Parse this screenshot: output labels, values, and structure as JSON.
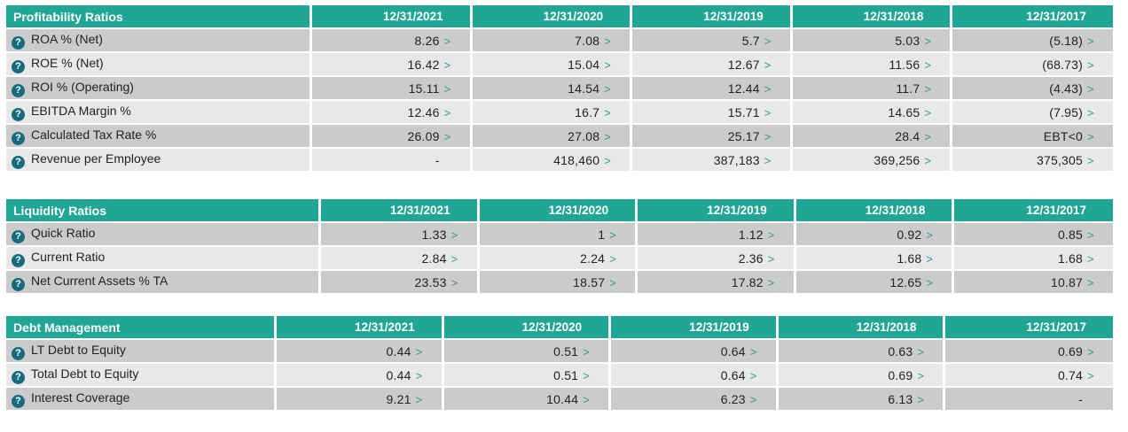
{
  "colors": {
    "header_teal": "#21a695",
    "help_icon_bg": "#176b7c",
    "row_dark": "#cbcbcb",
    "row_light": "#e8e8e8",
    "arrow_teal": "#2b9e94",
    "header_text": "#ffffff",
    "cell_text": "#222222"
  },
  "icons": {
    "help": "?",
    "arrow": ">"
  },
  "tables": [
    {
      "title": "Profitability Ratios",
      "columns": [
        "12/31/2021",
        "12/31/2020",
        "12/31/2019",
        "12/31/2018",
        "12/31/2017"
      ],
      "rows": [
        {
          "label": "ROA % (Net)",
          "values": [
            "8.26",
            "7.08",
            "5.7",
            "5.03",
            "(5.18)"
          ],
          "links": [
            true,
            true,
            true,
            true,
            true
          ]
        },
        {
          "label": "ROE % (Net)",
          "values": [
            "16.42",
            "15.04",
            "12.67",
            "11.56",
            "(68.73)"
          ],
          "links": [
            true,
            true,
            true,
            true,
            true
          ]
        },
        {
          "label": "ROI % (Operating)",
          "values": [
            "15.11",
            "14.54",
            "12.44",
            "11.7",
            "(4.43)"
          ],
          "links": [
            true,
            true,
            true,
            true,
            true
          ]
        },
        {
          "label": "EBITDA Margin %",
          "values": [
            "12.46",
            "16.7",
            "15.71",
            "14.65",
            "(7.95)"
          ],
          "links": [
            true,
            true,
            true,
            true,
            true
          ]
        },
        {
          "label": "Calculated Tax Rate %",
          "values": [
            "26.09",
            "27.08",
            "25.17",
            "28.4",
            "EBT<0"
          ],
          "links": [
            true,
            true,
            true,
            true,
            true
          ]
        },
        {
          "label": "Revenue per Employee",
          "values": [
            "-",
            "418,460",
            "387,183",
            "369,256",
            "375,305"
          ],
          "links": [
            false,
            true,
            true,
            true,
            true
          ]
        }
      ]
    },
    {
      "title": "Liquidity Ratios",
      "columns": [
        "12/31/2021",
        "12/31/2020",
        "12/31/2019",
        "12/31/2018",
        "12/31/2017"
      ],
      "rows": [
        {
          "label": "Quick Ratio",
          "values": [
            "1.33",
            "1",
            "1.12",
            "0.92",
            "0.85"
          ],
          "links": [
            true,
            true,
            true,
            true,
            true
          ]
        },
        {
          "label": "Current Ratio",
          "values": [
            "2.84",
            "2.24",
            "2.36",
            "1.68",
            "1.68"
          ],
          "links": [
            true,
            true,
            true,
            true,
            true
          ]
        },
        {
          "label": "Net Current Assets % TA",
          "values": [
            "23.53",
            "18.57",
            "17.82",
            "12.65",
            "10.87"
          ],
          "links": [
            true,
            true,
            true,
            true,
            true
          ]
        }
      ]
    },
    {
      "title": "Debt Management",
      "columns": [
        "12/31/2021",
        "12/31/2020",
        "12/31/2019",
        "12/31/2018",
        "12/31/2017"
      ],
      "rows": [
        {
          "label": "LT Debt to Equity",
          "values": [
            "0.44",
            "0.51",
            "0.64",
            "0.63",
            "0.69"
          ],
          "links": [
            true,
            true,
            true,
            true,
            true
          ]
        },
        {
          "label": "Total Debt to Equity",
          "values": [
            "0.44",
            "0.51",
            "0.64",
            "0.69",
            "0.74"
          ],
          "links": [
            true,
            true,
            true,
            true,
            true
          ]
        },
        {
          "label": "Interest Coverage",
          "values": [
            "9.21",
            "10.44",
            "6.23",
            "6.13",
            "-"
          ],
          "links": [
            true,
            true,
            true,
            true,
            false
          ]
        }
      ]
    }
  ]
}
